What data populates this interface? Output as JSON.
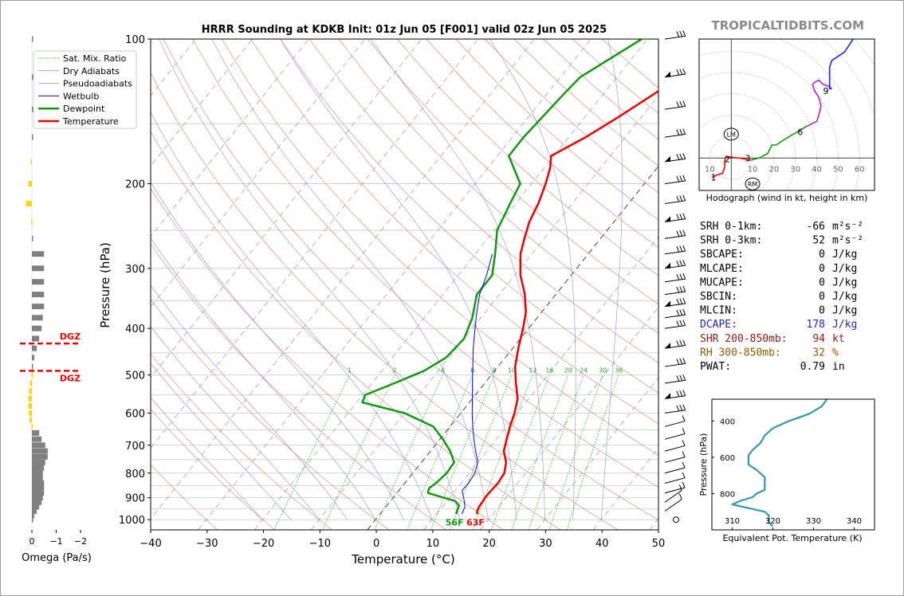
{
  "brand": "TROPICALTIDBITS.COM",
  "title": "HRRR Sounding at KDKB Init: 01z Jun 05 [F001] valid 02z Jun 05 2025",
  "colors": {
    "temperature": "#ee0000",
    "dewpoint": "#119911",
    "wetbulb": "#0000ee",
    "dgz": "#ee0000",
    "omega_up": "#ffd700",
    "omega_down": "#808080",
    "theta_e": "#3399aa",
    "dcape": "#2222cc",
    "shr": "#8b1a1a",
    "rh": "#8b5a00"
  },
  "legend": [
    {
      "label": "Sat. Mix. Ratio",
      "color": "#22aa22",
      "style": "dotted",
      "width": 1
    },
    {
      "label": "Dry Adiabats",
      "color": "#c06060",
      "style": "solid",
      "width": 0.6
    },
    {
      "label": "Pseudoadiabats",
      "color": "#8080c0",
      "style": "solid",
      "width": 0.6
    },
    {
      "label": "Wetbulb",
      "color": "#0000ee",
      "style": "solid",
      "width": 1
    },
    {
      "label": "Dewpoint",
      "color": "#119911",
      "style": "solid",
      "width": 2.5
    },
    {
      "label": "Temperature",
      "color": "#ee0000",
      "style": "solid",
      "width": 2.5
    }
  ],
  "chart_data": [
    {
      "type": "line",
      "name": "skew-t",
      "title": "HRRR Sounding at KDKB Init: 01z Jun 05 [F001] valid 02z Jun 05 2025",
      "xlabel": "Temperature (°C)",
      "ylabel": "Pressure (hPa)",
      "xlim": [
        -40,
        50
      ],
      "ylim": [
        1050,
        100
      ],
      "y_scale": "log",
      "x_ticks": [
        "−40",
        "−30",
        "−20",
        "−10",
        "0",
        "10",
        "20",
        "30",
        "40",
        "50"
      ],
      "x_tick_values": [
        -40,
        -30,
        -20,
        -10,
        0,
        10,
        20,
        30,
        40,
        50
      ],
      "y_ticks": [
        "100",
        "200",
        "300",
        "400",
        "500",
        "600",
        "700",
        "800",
        "900",
        "1000"
      ],
      "y_tick_values": [
        100,
        200,
        300,
        400,
        500,
        600,
        700,
        800,
        900,
        1000
      ],
      "mixing_ratio_labels": [
        "1",
        "2",
        "4",
        "6",
        "8",
        "10",
        "13",
        "16",
        "20",
        "24",
        "30",
        "36"
      ],
      "surface_labels": {
        "dewpoint": "56F",
        "temperature": "63F"
      },
      "series": [
        {
          "name": "Temperature",
          "points": [
            [
              974,
              17.2
            ],
            [
              960,
              16.8
            ],
            [
              940,
              16.5
            ],
            [
              920,
              16.4
            ],
            [
              900,
              16.3
            ],
            [
              880,
              16.3
            ],
            [
              860,
              16.4
            ],
            [
              840,
              16.5
            ],
            [
              800,
              16.2
            ],
            [
              760,
              15.0
            ],
            [
              720,
              13.0
            ],
            [
              680,
              11.8
            ],
            [
              640,
              10.6
            ],
            [
              600,
              9.5
            ],
            [
              560,
              8.0
            ],
            [
              520,
              5.5
            ],
            [
              480,
              3.0
            ],
            [
              440,
              1.0
            ],
            [
              400,
              -1.0
            ],
            [
              370,
              -2.8
            ],
            [
              340,
              -5.5
            ],
            [
              310,
              -9.0
            ],
            [
              280,
              -12.0
            ],
            [
              260,
              -13.5
            ],
            [
              240,
              -15.0
            ],
            [
              220,
              -16.0
            ],
            [
              200,
              -17.5
            ],
            [
              185,
              -19.0
            ],
            [
              175,
              -20.5
            ],
            [
              160,
              -17.0
            ],
            [
              145,
              -14.0
            ],
            [
              130,
              -11.0
            ],
            [
              115,
              -7.5
            ],
            [
              100,
              -7.0
            ]
          ]
        },
        {
          "name": "Dewpoint",
          "points": [
            [
              974,
              13.5
            ],
            [
              960,
              13.2
            ],
            [
              935,
              12.8
            ],
            [
              915,
              11.5
            ],
            [
              880,
              5.5
            ],
            [
              860,
              5.0
            ],
            [
              840,
              5.5
            ],
            [
              800,
              6.0
            ],
            [
              760,
              5.8
            ],
            [
              720,
              3.5
            ],
            [
              680,
              0.5
            ],
            [
              640,
              -3.0
            ],
            [
              600,
              -10.0
            ],
            [
              570,
              -19.0
            ],
            [
              550,
              -19.5
            ],
            [
              520,
              -16.0
            ],
            [
              490,
              -12.5
            ],
            [
              460,
              -10.5
            ],
            [
              420,
              -10.0
            ],
            [
              380,
              -11.5
            ],
            [
              340,
              -14.0
            ],
            [
              310,
              -14.0
            ],
            [
              280,
              -16.5
            ],
            [
              250,
              -19.5
            ],
            [
              220,
              -21.0
            ],
            [
              200,
              -22.0
            ],
            [
              175,
              -28.0
            ],
            [
              160,
              -28.0
            ],
            [
              130,
              -27.0
            ],
            [
              120,
              -26.5
            ],
            [
              100,
              -21.0
            ]
          ]
        },
        {
          "name": "Wetbulb",
          "points": [
            [
              974,
              14.5
            ],
            [
              940,
              14.0
            ],
            [
              900,
              12.5
            ],
            [
              870,
              11.2
            ],
            [
              840,
              11.3
            ],
            [
              800,
              11.0
            ],
            [
              760,
              10.0
            ],
            [
              720,
              8.0
            ],
            [
              680,
              6.0
            ],
            [
              640,
              4.0
            ],
            [
              600,
              2.0
            ],
            [
              560,
              0.0
            ],
            [
              520,
              -2.2
            ],
            [
              480,
              -4.5
            ],
            [
              440,
              -7.0
            ],
            [
              400,
              -9.5
            ],
            [
              370,
              -11.5
            ],
            [
              340,
              -13.5
            ],
            [
              310,
              -15.0
            ],
            [
              280,
              -17.0
            ]
          ]
        }
      ],
      "wind_barbs_pressure_hpa": [
        100,
        120,
        140,
        160,
        180,
        200,
        220,
        240,
        260,
        280,
        300,
        320,
        340,
        360,
        380,
        400,
        440,
        480,
        520,
        560,
        600,
        640,
        680,
        720,
        760,
        800,
        840,
        880,
        920,
        960,
        1000
      ],
      "annotations": [
        "DGZ"
      ]
    },
    {
      "type": "bar",
      "name": "omega",
      "xlabel": "Omega (Pa/s)",
      "xlim": [
        0.2,
        -2.0
      ],
      "x_ticks": [
        "0",
        "−1",
        "−2"
      ],
      "x_tick_values": [
        0,
        -1,
        -2
      ],
      "dgz_levels_hpa": [
        430,
        490
      ],
      "dgz_label": "DGZ",
      "levels_hpa": [
        100,
        120,
        140,
        160,
        180,
        200,
        220,
        240,
        260,
        280,
        300,
        320,
        340,
        360,
        380,
        400,
        420,
        440,
        460,
        480,
        500,
        520,
        540,
        560,
        580,
        600,
        620,
        640,
        660,
        680,
        700,
        720,
        740,
        760,
        780,
        800,
        820,
        840,
        860,
        880,
        900,
        920,
        940,
        960,
        980,
        1000
      ],
      "values": [
        -0.05,
        -0.05,
        -0.05,
        -0.05,
        0.05,
        0.15,
        0.25,
        0.03,
        -0.03,
        -0.5,
        -0.5,
        -0.5,
        -0.5,
        -0.5,
        -0.45,
        -0.4,
        -0.3,
        -0.2,
        -0.1,
        -0.03,
        0.02,
        0.08,
        0.12,
        0.15,
        0.15,
        0.12,
        0.1,
        0.02,
        -0.3,
        -0.4,
        -0.55,
        -0.65,
        -0.65,
        -0.55,
        -0.5,
        -0.45,
        -0.45,
        -0.5,
        -0.5,
        -0.5,
        -0.45,
        -0.4,
        -0.3,
        -0.2,
        -0.1,
        -0.05
      ]
    },
    {
      "type": "line",
      "name": "hodograph",
      "xlabel": "Hodograph (wind in kt, height in km)",
      "xlim": [
        -15,
        67
      ],
      "ylim": [
        -15,
        55
      ],
      "tick_labels": [
        "10",
        "10",
        "20",
        "30",
        "40",
        "50",
        "60"
      ],
      "tick_values": [
        -10,
        10,
        20,
        30,
        40,
        50,
        60
      ],
      "height_labels": [
        "1",
        "2",
        "3",
        "6",
        "9"
      ],
      "markers": [
        "LM",
        "RM"
      ],
      "segments": [
        {
          "color": "#ee0000",
          "points": [
            [
              -9,
              -9
            ],
            [
              -7,
              -8
            ],
            [
              -4,
              -7
            ],
            [
              -3,
              -4
            ],
            [
              -3,
              -1
            ],
            [
              -2.5,
              0.5
            ],
            [
              0,
              0.5
            ],
            [
              2,
              0
            ],
            [
              4,
              0
            ],
            [
              9,
              -1
            ]
          ]
        },
        {
          "color": "#119911",
          "points": [
            [
              9,
              -1
            ],
            [
              13,
              0
            ],
            [
              17,
              2
            ],
            [
              19,
              6
            ],
            [
              21,
              6
            ],
            [
              24,
              8
            ],
            [
              29,
              11
            ],
            [
              31,
              12
            ],
            [
              34,
              14
            ],
            [
              36,
              15
            ]
          ]
        },
        {
          "color": "#bb22bb",
          "points": [
            [
              36,
              15
            ],
            [
              40,
              17
            ],
            [
              41,
              20
            ],
            [
              42,
              24
            ],
            [
              41,
              28
            ],
            [
              39,
              31
            ],
            [
              38,
              34
            ],
            [
              39,
              35
            ],
            [
              41,
              36
            ],
            [
              43,
              34
            ],
            [
              46,
              33
            ],
            [
              47,
              32
            ]
          ]
        },
        {
          "color": "#2222ee",
          "points": [
            [
              47,
              32
            ],
            [
              46,
              32
            ],
            [
              46,
              35
            ],
            [
              46,
              42
            ],
            [
              47,
              45
            ],
            [
              50,
              47
            ],
            [
              53,
              49
            ],
            [
              57,
              55
            ]
          ]
        }
      ]
    },
    {
      "type": "line",
      "name": "theta-e",
      "xlabel": "Equivalent Pot. Temperature (K)",
      "ylabel": "Pressure (hPa)",
      "xlim": [
        305,
        345
      ],
      "ylim": [
        1000,
        280
      ],
      "x_ticks": [
        "310",
        "320",
        "330",
        "340"
      ],
      "x_tick_values": [
        310,
        320,
        330,
        340
      ],
      "y_ticks": [
        "400",
        "600",
        "800"
      ],
      "y_tick_values": [
        400,
        600,
        800
      ],
      "points": [
        [
          340,
          -20
        ],
        [
          333.3,
          280
        ],
        [
          332,
          320
        ],
        [
          329,
          360
        ],
        [
          324,
          400
        ],
        [
          320,
          440
        ],
        [
          318,
          480
        ],
        [
          317,
          520
        ],
        [
          315,
          560
        ],
        [
          314,
          590
        ],
        [
          314,
          640
        ],
        [
          316,
          670
        ],
        [
          318,
          710
        ],
        [
          318,
          740
        ],
        [
          318,
          780
        ],
        [
          316,
          800
        ],
        [
          315,
          820
        ],
        [
          312,
          840
        ],
        [
          310,
          860
        ],
        [
          314,
          880
        ],
        [
          318,
          900
        ],
        [
          319,
          920
        ],
        [
          319,
          960
        ],
        [
          320,
          980
        ]
      ]
    }
  ],
  "stats": [
    {
      "label": "SRH 0-1km:",
      "value": "-66",
      "unit": "m²s⁻²",
      "color": "#000000"
    },
    {
      "label": "SRH 0-3km:",
      "value": "52",
      "unit": "m²s⁻²",
      "color": "#000000"
    },
    {
      "label": "SBCAPE:",
      "value": "0",
      "unit": "J/kg",
      "color": "#000000"
    },
    {
      "label": "MLCAPE:",
      "value": "0",
      "unit": "J/kg",
      "color": "#000000"
    },
    {
      "label": "MUCAPE:",
      "value": "0",
      "unit": "J/kg",
      "color": "#000000"
    },
    {
      "label": "SBCIN:",
      "value": "0",
      "unit": "J/kg",
      "color": "#000000"
    },
    {
      "label": "MLCIN:",
      "value": "0",
      "unit": "J/kg",
      "color": "#000000"
    },
    {
      "label": "DCAPE:",
      "value": "178",
      "unit": "J/kg",
      "color": "#2222cc"
    },
    {
      "label": "SHR 200-850mb:",
      "value": "94",
      "unit": "kt",
      "color": "#8b1a1a"
    },
    {
      "label": "RH 300-850mb:",
      "value": "32",
      "unit": "%",
      "color": "#8b5a00"
    },
    {
      "label": "PWAT:",
      "value": "0.79",
      "unit": "in",
      "color": "#000000"
    }
  ]
}
